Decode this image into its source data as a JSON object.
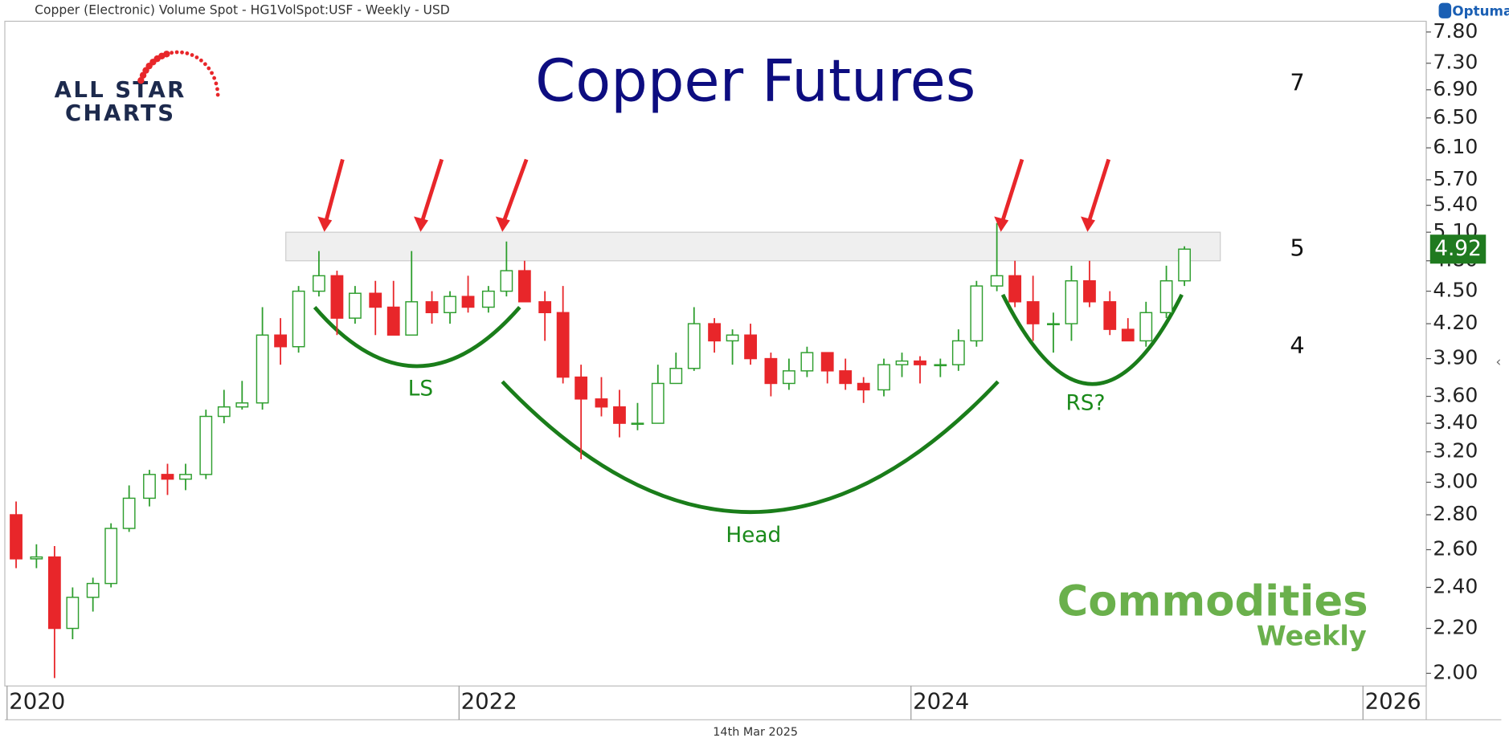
{
  "chart_data": {
    "type": "candlestick",
    "header": "Copper (Electronic) Volume Spot - HG1VolSpot:USF - Weekly - USD",
    "brand": "Optuma",
    "title": "Copper Futures",
    "logo": [
      "ALL STAR",
      "CHARTS"
    ],
    "badge": [
      "Commodities",
      "Weekly"
    ],
    "date_note": "14th Mar 2025",
    "annotations": [
      "7",
      "5",
      "4"
    ],
    "pattern_labels": [
      "LS",
      "Head",
      "RS?"
    ],
    "zone": [
      4.8,
      5.1
    ],
    "up_color": "#2e9e2e",
    "down_color": "#e8262a",
    "log_scale": true,
    "x": [
      2020.04,
      2020.13,
      2020.21,
      2020.29,
      2020.38,
      2020.46,
      2020.54,
      2020.63,
      2020.71,
      2020.79,
      2020.88,
      2020.96,
      2021.04,
      2021.13,
      2021.21,
      2021.29,
      2021.38,
      2021.46,
      2021.54,
      2021.63,
      2021.71,
      2021.79,
      2021.88,
      2021.96,
      2022.04,
      2022.13,
      2022.21,
      2022.29,
      2022.38,
      2022.46,
      2022.54,
      2022.63,
      2022.71,
      2022.79,
      2022.88,
      2022.96,
      2023.04,
      2023.13,
      2023.21,
      2023.29,
      2023.38,
      2023.46,
      2023.54,
      2023.63,
      2023.71,
      2023.79,
      2023.88,
      2023.96,
      2024.04,
      2024.13,
      2024.21,
      2024.29,
      2024.38,
      2024.46,
      2024.54,
      2024.63,
      2024.71,
      2024.79,
      2024.88,
      2024.96,
      2025.04,
      2025.13,
      2025.21
    ],
    "open": [
      2.8,
      2.55,
      2.56,
      2.2,
      2.35,
      2.42,
      2.72,
      2.9,
      3.05,
      3.02,
      3.05,
      3.45,
      3.52,
      3.55,
      4.1,
      4.0,
      4.5,
      4.65,
      4.25,
      4.48,
      4.35,
      4.1,
      4.4,
      4.3,
      4.45,
      4.35,
      4.5,
      4.7,
      4.4,
      4.3,
      3.75,
      3.58,
      3.52,
      3.4,
      3.4,
      3.7,
      3.82,
      4.2,
      4.05,
      4.1,
      3.9,
      3.7,
      3.8,
      3.95,
      3.8,
      3.7,
      3.65,
      3.85,
      3.88,
      3.85,
      3.85,
      4.05,
      4.55,
      4.65,
      4.4,
      4.2,
      4.2,
      4.6,
      4.4,
      4.15,
      4.05,
      4.3,
      4.6
    ],
    "high": [
      2.88,
      2.63,
      2.62,
      2.4,
      2.45,
      2.75,
      2.98,
      3.08,
      3.12,
      3.12,
      3.5,
      3.65,
      3.72,
      4.35,
      4.25,
      4.55,
      4.9,
      4.7,
      4.55,
      4.6,
      4.6,
      4.9,
      4.5,
      4.5,
      4.65,
      4.55,
      5.0,
      4.8,
      4.5,
      4.55,
      3.85,
      3.75,
      3.65,
      3.55,
      3.85,
      3.95,
      4.35,
      4.25,
      4.15,
      4.2,
      3.95,
      3.9,
      4.0,
      3.95,
      3.9,
      3.75,
      3.9,
      3.95,
      3.92,
      3.9,
      4.15,
      4.6,
      5.2,
      4.8,
      4.65,
      4.3,
      4.75,
      4.8,
      4.5,
      4.25,
      4.4,
      4.75,
      4.95
    ],
    "low": [
      2.5,
      2.5,
      1.98,
      2.15,
      2.28,
      2.4,
      2.7,
      2.85,
      2.92,
      2.95,
      3.02,
      3.4,
      3.5,
      3.5,
      3.85,
      3.95,
      4.45,
      4.1,
      4.2,
      4.1,
      4.1,
      4.1,
      4.2,
      4.2,
      4.3,
      4.3,
      4.45,
      4.4,
      4.05,
      3.7,
      3.15,
      3.45,
      3.3,
      3.35,
      3.4,
      3.7,
      3.8,
      3.95,
      3.85,
      3.85,
      3.6,
      3.65,
      3.75,
      3.7,
      3.65,
      3.55,
      3.6,
      3.75,
      3.7,
      3.75,
      3.8,
      4.0,
      4.5,
      4.35,
      4.05,
      3.95,
      4.05,
      4.35,
      4.1,
      4.05,
      4.0,
      4.25,
      4.55
    ],
    "close": [
      2.55,
      2.56,
      2.2,
      2.35,
      2.42,
      2.72,
      2.9,
      3.05,
      3.02,
      3.05,
      3.45,
      3.52,
      3.55,
      4.1,
      4.0,
      4.5,
      4.65,
      4.25,
      4.48,
      4.35,
      4.1,
      4.4,
      4.3,
      4.45,
      4.35,
      4.5,
      4.7,
      4.4,
      4.3,
      3.75,
      3.58,
      3.52,
      3.4,
      3.4,
      3.7,
      3.82,
      4.2,
      4.05,
      4.1,
      3.9,
      3.7,
      3.8,
      3.95,
      3.8,
      3.7,
      3.65,
      3.85,
      3.88,
      3.85,
      3.85,
      4.05,
      4.55,
      4.65,
      4.4,
      4.2,
      4.2,
      4.6,
      4.4,
      4.15,
      4.05,
      4.3,
      4.6,
      4.92
    ],
    "xlim": [
      2019.99,
      2026.28
    ],
    "xticks": [
      2020,
      2022,
      2024,
      2026
    ],
    "ylim": [
      1.947,
      7.98
    ],
    "yticks": [
      {
        "value": 2,
        "label": "2.00"
      },
      {
        "value": 2.2,
        "label": "2.20"
      },
      {
        "value": 2.4,
        "label": "2.40"
      },
      {
        "value": 2.6,
        "label": "2.60"
      },
      {
        "value": 2.8,
        "label": "2.80"
      },
      {
        "value": 3,
        "label": "3.00"
      },
      {
        "value": 3.2,
        "label": "3.20"
      },
      {
        "value": 3.4,
        "label": "3.40"
      },
      {
        "value": 3.6,
        "label": "3.60"
      },
      {
        "value": 3.9,
        "label": "3.90"
      },
      {
        "value": 4.2,
        "label": "4.20"
      },
      {
        "value": 4.5,
        "label": "4.50"
      },
      {
        "value": 4.8,
        "label": "4.80"
      },
      {
        "value": 5.1,
        "label": "5.10"
      },
      {
        "value": 5.4,
        "label": "5.40"
      },
      {
        "value": 5.7,
        "label": "5.70"
      },
      {
        "value": 6.1,
        "label": "6.10"
      },
      {
        "value": 6.5,
        "label": "6.50"
      },
      {
        "value": 6.9,
        "label": "6.90"
      },
      {
        "value": 7.3,
        "label": "7.30"
      },
      {
        "value": 7.8,
        "label": "7.80"
      }
    ]
  }
}
